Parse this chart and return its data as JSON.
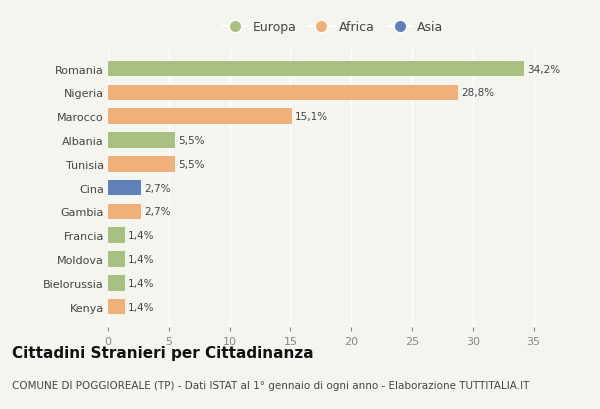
{
  "categories": [
    "Kenya",
    "Bielorussia",
    "Moldova",
    "Francia",
    "Gambia",
    "Cina",
    "Tunisia",
    "Albania",
    "Marocco",
    "Nigeria",
    "Romania"
  ],
  "values": [
    1.4,
    1.4,
    1.4,
    1.4,
    2.7,
    2.7,
    5.5,
    5.5,
    15.1,
    28.8,
    34.2
  ],
  "continents": [
    "Africa",
    "Europa",
    "Europa",
    "Europa",
    "Africa",
    "Asia",
    "Africa",
    "Europa",
    "Africa",
    "Africa",
    "Europa"
  ],
  "labels": [
    "1,4%",
    "1,4%",
    "1,4%",
    "1,4%",
    "2,7%",
    "2,7%",
    "5,5%",
    "5,5%",
    "15,1%",
    "28,8%",
    "34,2%"
  ],
  "colors": {
    "Europa": "#a8c080",
    "Africa": "#f0b07a",
    "Asia": "#6080b8"
  },
  "legend_labels": [
    "Europa",
    "Africa",
    "Asia"
  ],
  "xlim": [
    0,
    37
  ],
  "xticks": [
    0,
    5,
    10,
    15,
    20,
    25,
    30,
    35
  ],
  "title": "Cittadini Stranieri per Cittadinanza",
  "subtitle": "COMUNE DI POGGIOREALE (TP) - Dati ISTAT al 1° gennaio di ogni anno - Elaborazione TUTTITALIA.IT",
  "background_color": "#f5f5f0",
  "grid_color": "#ffffff",
  "title_fontsize": 11,
  "subtitle_fontsize": 7.5,
  "label_fontsize": 7.5,
  "tick_fontsize": 8,
  "legend_fontsize": 9
}
